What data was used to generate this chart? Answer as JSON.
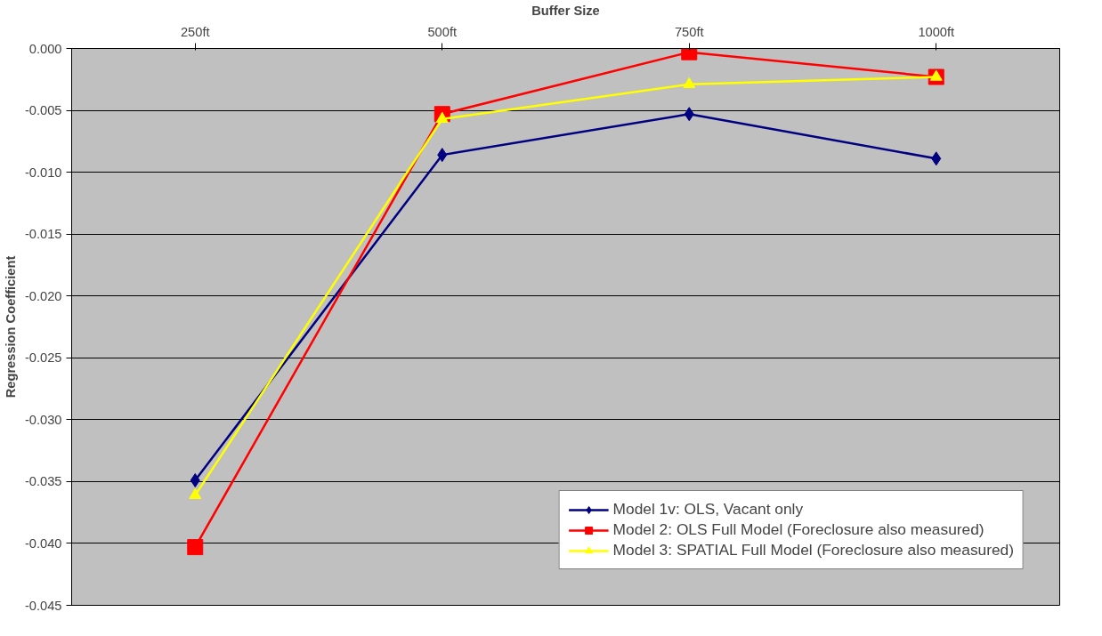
{
  "chart_data": {
    "type": "line",
    "xlabel": "Buffer Size",
    "ylabel": "Regression Coefficient",
    "categories": [
      "250ft",
      "500ft",
      "750ft",
      "1000ft"
    ],
    "series": [
      {
        "name": "Model 1v: OLS, Vacant only",
        "color": "#000080",
        "marker": "diamond",
        "values": [
          -0.0349,
          -0.0086,
          -0.0053,
          -0.0089
        ]
      },
      {
        "name": "Model 2: OLS Full Model (Foreclosure also measured)",
        "color": "#ff0000",
        "marker": "square",
        "values": [
          -0.0403,
          -0.0053,
          -0.0003,
          -0.0023
        ]
      },
      {
        "name": "Model 3: SPATIAL Full Model (Foreclosure also measured)",
        "color": "#ffff00",
        "marker": "triangle",
        "values": [
          -0.0361,
          -0.0057,
          -0.0029,
          -0.0023
        ]
      }
    ],
    "ylim": [
      -0.045,
      0
    ],
    "yticks": [
      {
        "value": 0,
        "label": "0.000"
      },
      {
        "value": -0.005,
        "label": "-0.005"
      },
      {
        "value": -0.01,
        "label": "-0.010"
      },
      {
        "value": -0.015,
        "label": "-0.015"
      },
      {
        "value": -0.02,
        "label": "-0.020"
      },
      {
        "value": -0.025,
        "label": "-0.025"
      },
      {
        "value": -0.03,
        "label": "-0.030"
      },
      {
        "value": -0.035,
        "label": "-0.035"
      },
      {
        "value": -0.04,
        "label": "-0.040"
      },
      {
        "value": -0.045,
        "label": "-0.045"
      }
    ],
    "grid": "y",
    "legend": "bottom right",
    "line_style": "solid"
  }
}
